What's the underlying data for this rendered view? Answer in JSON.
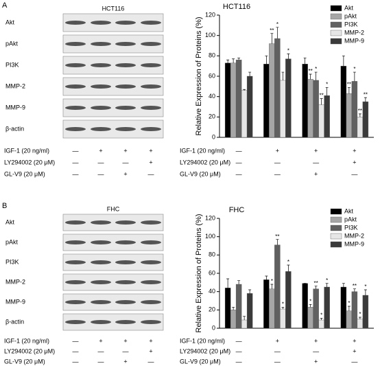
{
  "panels": [
    {
      "letter": "A",
      "blot_title": "HCT116",
      "blot_rows": [
        "Akt",
        "pAkt",
        "PI3K",
        "MMP-2",
        "MMP-9",
        "β-actin"
      ],
      "treatments": [
        {
          "label": "IGF-1 (20 ng/ml)",
          "signs": [
            "—",
            "+",
            "+",
            "+"
          ]
        },
        {
          "label": "LY294002 (20 μM)",
          "signs": [
            "—",
            "—",
            "—",
            "+"
          ]
        },
        {
          "label": "GL-V9 (20 μM)",
          "signs": [
            "—",
            "—",
            "+",
            "—"
          ]
        }
      ]
    },
    {
      "letter": "B",
      "blot_title": "FHC",
      "blot_rows": [
        "Akt",
        "pAkt",
        "PI3K",
        "MMP-2",
        "MMP-9",
        "β-actin"
      ],
      "treatments": [
        {
          "label": "IGF-1 (20 ng/ml)",
          "signs": [
            "—",
            "+",
            "+",
            "+"
          ]
        },
        {
          "label": "LY294002 (20 μM)",
          "signs": [
            "—",
            "—",
            "—",
            "+"
          ]
        },
        {
          "label": "GL-V9 (20 μM)",
          "signs": [
            "—",
            "—",
            "+",
            "—"
          ]
        }
      ]
    }
  ],
  "chart_data": [
    {
      "type": "bar",
      "title": "HCT116",
      "y_label": "Relative Expression of Proteins (%)",
      "ylim": [
        0,
        120
      ],
      "yticks": [
        0,
        20,
        40,
        60,
        80,
        100,
        120
      ],
      "legend": "upper right",
      "series": [
        {
          "name": "Akt",
          "color": "#000000",
          "values": [
            73,
            72,
            72,
            70
          ],
          "errors": [
            3,
            8,
            6,
            10
          ],
          "sig": [
            null,
            null,
            null,
            null
          ]
        },
        {
          "name": "pAkt",
          "color": "#a6a6a6",
          "values": [
            73,
            92,
            57,
            43
          ],
          "errors": [
            4,
            10,
            5,
            6
          ],
          "sig": [
            null,
            "**",
            "**",
            "**"
          ]
        },
        {
          "name": "PI3K",
          "color": "#606060",
          "values": [
            76,
            97,
            56,
            55
          ],
          "errors": [
            2,
            11,
            8,
            9
          ],
          "sig": [
            null,
            "*",
            "*",
            "*"
          ]
        },
        {
          "name": "MMP-2",
          "color": "#e6e6e6",
          "values": [
            46,
            56,
            32,
            20
          ],
          "errors": [
            1,
            8,
            6,
            3
          ],
          "sig": [
            null,
            null,
            "**",
            "**"
          ]
        },
        {
          "name": "MMP-9",
          "color": "#3a3a3a",
          "values": [
            60,
            77,
            41,
            35
          ],
          "errors": [
            4,
            5,
            8,
            4
          ],
          "sig": [
            null,
            "*",
            "*",
            "**"
          ]
        }
      ]
    },
    {
      "type": "bar",
      "title": "FHC",
      "y_label": "Relative Expression of Proteins (%)",
      "ylim": [
        0,
        120
      ],
      "yticks": [
        0,
        20,
        40,
        60,
        80,
        100,
        120
      ],
      "legend": "upper right",
      "series": [
        {
          "name": "Akt",
          "color": "#000000",
          "values": [
            44,
            53,
            49,
            45
          ],
          "errors": [
            10,
            4,
            0,
            4
          ],
          "sig": [
            null,
            null,
            null,
            null
          ]
        },
        {
          "name": "pAkt",
          "color": "#a6a6a6",
          "values": [
            20,
            43,
            23,
            19
          ],
          "errors": [
            3,
            5,
            3,
            5
          ],
          "sig": [
            null,
            "*",
            "*",
            "*"
          ]
        },
        {
          "name": "PI3K",
          "color": "#606060",
          "values": [
            48,
            91,
            43,
            40
          ],
          "errors": [
            4,
            6,
            3,
            3
          ],
          "sig": [
            null,
            "**",
            "**",
            "**"
          ]
        },
        {
          "name": "MMP-2",
          "color": "#e6e6e6",
          "values": [
            9,
            21,
            9,
            10
          ],
          "errors": [
            4,
            2,
            2,
            2
          ],
          "sig": [
            null,
            "*",
            "*",
            "*"
          ]
        },
        {
          "name": "MMP-9",
          "color": "#3a3a3a",
          "values": [
            38,
            62,
            45,
            36
          ],
          "errors": [
            4,
            7,
            4,
            6
          ],
          "sig": [
            null,
            "*",
            "*",
            "*"
          ]
        }
      ]
    }
  ]
}
